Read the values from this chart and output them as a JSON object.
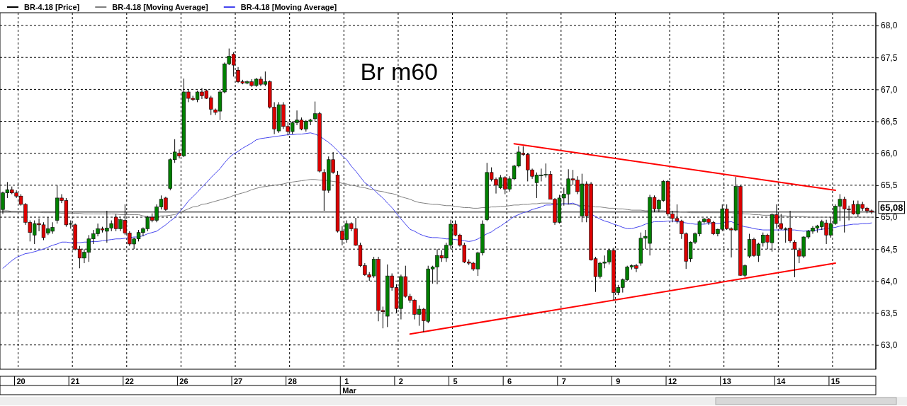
{
  "chart_data": {
    "type": "candlestick",
    "categories": [
      null,
      null,
      null,
      null,
      "20",
      null,
      null,
      null,
      null,
      null,
      null,
      null,
      null,
      null,
      null,
      null,
      "21",
      null,
      null,
      null,
      null,
      null,
      null,
      null,
      null,
      null,
      null,
      null,
      "22",
      null,
      null,
      null,
      null,
      null,
      null,
      null,
      null,
      null,
      null,
      null,
      "26",
      null,
      null,
      null,
      null,
      null,
      null,
      null,
      null,
      null,
      null,
      null,
      "27",
      null,
      null,
      null,
      null,
      null,
      null,
      null,
      null,
      null,
      null,
      null,
      "28",
      null,
      null,
      null,
      null,
      null,
      null,
      null,
      null,
      null,
      null,
      null,
      "1",
      null,
      null,
      null,
      null,
      null,
      null,
      null,
      null,
      null,
      null,
      null,
      "2",
      null,
      null,
      null,
      null,
      null,
      null,
      null,
      null,
      null,
      null,
      null,
      "5",
      null,
      null,
      null,
      null,
      null,
      null,
      null,
      null,
      null,
      null,
      null,
      "6",
      null,
      null,
      null,
      null,
      null,
      null,
      null,
      null,
      null,
      null,
      null,
      "7",
      null,
      null,
      null,
      null,
      null,
      null,
      null,
      null,
      null,
      null,
      null,
      "9",
      null,
      null,
      null,
      null,
      null,
      null,
      null,
      null,
      null,
      null,
      null,
      "12",
      null,
      null,
      null,
      null,
      null,
      null,
      null,
      null,
      null,
      null,
      null,
      "13",
      null,
      null,
      null,
      null,
      null,
      null,
      null,
      null,
      null,
      null,
      null,
      "14",
      null,
      null,
      null,
      null,
      null,
      null,
      null,
      null,
      null,
      null,
      null,
      "15",
      null,
      null,
      null,
      null,
      null,
      null,
      null,
      null
    ],
    "series": [
      {
        "name": "BR-4.18 [Price]",
        "color": "#000000",
        "ohlc": [
          [
            65.12,
            65.4,
            65.05,
            65.38
          ],
          [
            65.38,
            65.55,
            65.3,
            65.43
          ],
          [
            65.43,
            65.48,
            65.36,
            65.38
          ],
          [
            65.38,
            65.42,
            65.3,
            65.33
          ],
          [
            65.33,
            65.36,
            65.18,
            65.2
          ],
          [
            65.2,
            65.22,
            64.88,
            64.92
          ],
          [
            64.92,
            64.95,
            64.62,
            64.76
          ],
          [
            64.72,
            64.95,
            64.58,
            64.9
          ],
          [
            64.9,
            64.98,
            64.78,
            64.88
          ],
          [
            64.88,
            64.92,
            64.64,
            64.68
          ],
          [
            64.75,
            65.0,
            64.72,
            64.82
          ],
          [
            64.78,
            64.92,
            64.74,
            64.84
          ],
          [
            64.95,
            65.5,
            64.9,
            65.3
          ],
          [
            65.3,
            65.36,
            65.22,
            65.26
          ],
          [
            65.26,
            65.3,
            64.85,
            64.88
          ],
          [
            64.9,
            64.95,
            64.82,
            64.9
          ],
          [
            64.88,
            64.9,
            64.48,
            64.5
          ],
          [
            64.5,
            64.55,
            64.2,
            64.36
          ],
          [
            64.36,
            64.5,
            64.28,
            64.45
          ],
          [
            64.45,
            64.72,
            64.3,
            64.66
          ],
          [
            64.66,
            64.8,
            64.58,
            64.74
          ],
          [
            64.74,
            64.9,
            64.7,
            64.82
          ],
          [
            64.82,
            64.85,
            64.76,
            64.8
          ],
          [
            64.78,
            65.1,
            64.6,
            64.83
          ],
          [
            64.83,
            64.95,
            64.78,
            64.9
          ],
          [
            65.0,
            65.05,
            64.78,
            64.82
          ],
          [
            64.82,
            64.98,
            64.78,
            64.96
          ],
          [
            64.95,
            65.2,
            64.72,
            64.75
          ],
          [
            64.75,
            64.78,
            64.55,
            64.58
          ],
          [
            64.58,
            64.68,
            64.5,
            64.66
          ],
          [
            64.66,
            64.8,
            64.62,
            64.76
          ],
          [
            64.76,
            64.84,
            64.7,
            64.82
          ],
          [
            64.82,
            65.02,
            64.78,
            65.0
          ],
          [
            65.0,
            65.06,
            64.92,
            64.95
          ],
          [
            64.95,
            65.2,
            64.92,
            65.16
          ],
          [
            65.16,
            65.34,
            65.12,
            65.28
          ],
          [
            65.3,
            65.32,
            65.1,
            65.12
          ],
          [
            65.45,
            65.92,
            65.42,
            65.9
          ],
          [
            65.9,
            66.22,
            65.85,
            66.02
          ],
          [
            66.0,
            66.06,
            65.92,
            65.96
          ],
          [
            65.96,
            67.17,
            65.94,
            66.96
          ],
          [
            66.96,
            67.0,
            66.8,
            66.86
          ],
          [
            66.86,
            66.9,
            66.82,
            66.84
          ],
          [
            66.84,
            66.98,
            66.8,
            66.96
          ],
          [
            66.96,
            67.02,
            66.85,
            66.9
          ],
          [
            66.98,
            67.0,
            66.85,
            66.86
          ],
          [
            66.87,
            66.9,
            66.6,
            66.69
          ],
          [
            66.68,
            66.7,
            66.6,
            66.64
          ],
          [
            66.66,
            67.0,
            66.52,
            66.96
          ],
          [
            66.96,
            67.42,
            66.94,
            67.4
          ],
          [
            67.4,
            67.64,
            67.38,
            67.52
          ],
          [
            67.55,
            67.58,
            67.2,
            67.38
          ],
          [
            67.3,
            67.35,
            67.1,
            67.12
          ],
          [
            67.12,
            67.15,
            67.08,
            67.1
          ],
          [
            67.1,
            67.14,
            67.08,
            67.12
          ],
          [
            67.12,
            67.16,
            67.04,
            67.06
          ],
          [
            67.06,
            67.18,
            67.04,
            67.16
          ],
          [
            67.16,
            67.2,
            67.05,
            67.08
          ],
          [
            67.08,
            67.28,
            67.05,
            67.12
          ],
          [
            67.12,
            67.14,
            66.7,
            66.72
          ],
          [
            66.72,
            66.8,
            66.3,
            66.38
          ],
          [
            66.35,
            66.8,
            66.32,
            66.76
          ],
          [
            66.76,
            66.8,
            66.38,
            66.42
          ],
          [
            66.42,
            66.5,
            66.28,
            66.34
          ],
          [
            66.34,
            66.5,
            66.3,
            66.48
          ],
          [
            66.48,
            66.67,
            66.44,
            66.52
          ],
          [
            66.52,
            66.56,
            66.36,
            66.38
          ],
          [
            66.38,
            66.52,
            66.34,
            66.5
          ],
          [
            66.5,
            66.54,
            66.44,
            66.52
          ],
          [
            66.54,
            66.81,
            66.5,
            66.62
          ],
          [
            66.62,
            66.65,
            65.7,
            65.72
          ],
          [
            65.7,
            65.75,
            65.1,
            65.42
          ],
          [
            65.42,
            65.95,
            65.38,
            65.9
          ],
          [
            65.9,
            66.02,
            65.68,
            65.7
          ],
          [
            65.66,
            65.72,
            64.76,
            64.78
          ],
          [
            64.78,
            64.86,
            64.56,
            64.65
          ],
          [
            64.65,
            64.95,
            64.6,
            64.9
          ],
          [
            64.9,
            64.92,
            64.78,
            64.82
          ],
          [
            64.82,
            64.99,
            64.55,
            64.56
          ],
          [
            64.56,
            64.6,
            64.22,
            64.24
          ],
          [
            64.24,
            64.28,
            64.08,
            64.1
          ],
          [
            64.1,
            64.14,
            64.0,
            64.06
          ],
          [
            64.08,
            64.38,
            64.05,
            64.34
          ],
          [
            64.34,
            64.38,
            63.37,
            63.54
          ],
          [
            63.54,
            63.6,
            63.26,
            63.52
          ],
          [
            63.45,
            64.26,
            63.28,
            64.08
          ],
          [
            64.08,
            64.12,
            63.85,
            63.9
          ],
          [
            63.9,
            63.95,
            63.5,
            63.57
          ],
          [
            63.57,
            64.1,
            63.4,
            64.07
          ],
          [
            64.07,
            64.24,
            63.74,
            63.76
          ],
          [
            63.76,
            63.8,
            63.66,
            63.7
          ],
          [
            63.7,
            63.72,
            63.4,
            63.48
          ],
          [
            63.48,
            63.62,
            63.3,
            63.56
          ],
          [
            63.56,
            63.58,
            63.2,
            63.38
          ],
          [
            63.37,
            64.24,
            63.34,
            64.19
          ],
          [
            64.19,
            64.24,
            63.96,
            64.22
          ],
          [
            64.22,
            64.5,
            63.95,
            64.4
          ],
          [
            64.4,
            64.48,
            64.3,
            64.36
          ],
          [
            64.36,
            64.6,
            64.3,
            64.56
          ],
          [
            64.56,
            64.96,
            64.5,
            64.89
          ],
          [
            64.89,
            64.95,
            64.7,
            64.72
          ],
          [
            64.72,
            64.74,
            64.54,
            64.56
          ],
          [
            64.56,
            64.6,
            64.28,
            64.3
          ],
          [
            64.3,
            64.34,
            64.25,
            64.28
          ],
          [
            64.28,
            64.3,
            64.16,
            64.19
          ],
          [
            64.19,
            64.46,
            64.08,
            64.44
          ],
          [
            64.44,
            64.95,
            64.4,
            64.89
          ],
          [
            64.96,
            65.85,
            64.94,
            65.7
          ],
          [
            65.7,
            65.78,
            65.56,
            65.59
          ],
          [
            65.59,
            65.62,
            65.37,
            65.5
          ],
          [
            65.46,
            65.66,
            65.44,
            65.62
          ],
          [
            65.62,
            65.64,
            65.36,
            65.44
          ],
          [
            65.44,
            65.64,
            65.4,
            65.6
          ],
          [
            65.6,
            65.82,
            65.58,
            65.8
          ],
          [
            65.8,
            66.11,
            65.78,
            66.02
          ],
          [
            66.0,
            66.11,
            65.96,
            65.98
          ],
          [
            65.98,
            66.0,
            65.56,
            65.74
          ],
          [
            65.74,
            65.76,
            65.6,
            65.64
          ],
          [
            65.54,
            65.7,
            65.3,
            65.66
          ],
          [
            65.66,
            65.76,
            65.56,
            65.66
          ],
          [
            65.66,
            65.84,
            65.62,
            65.67
          ],
          [
            65.67,
            65.72,
            65.28,
            65.28
          ],
          [
            65.28,
            65.3,
            64.88,
            64.92
          ],
          [
            64.92,
            65.35,
            64.9,
            65.3
          ],
          [
            65.3,
            65.46,
            65.18,
            65.36
          ],
          [
            65.36,
            65.75,
            65.2,
            65.6
          ],
          [
            65.6,
            65.74,
            65.5,
            65.58
          ],
          [
            65.58,
            65.64,
            65.36,
            65.4
          ],
          [
            65.02,
            65.68,
            64.92,
            65.52
          ],
          [
            65.52,
            65.56,
            64.92,
            65.02
          ],
          [
            65.52,
            65.55,
            64.32,
            64.33
          ],
          [
            64.35,
            64.38,
            63.83,
            64.07
          ],
          [
            64.07,
            64.3,
            64.04,
            64.28
          ],
          [
            64.28,
            64.4,
            64.2,
            64.3
          ],
          [
            64.3,
            64.5,
            64.26,
            64.48
          ],
          [
            64.48,
            64.52,
            63.7,
            63.82
          ],
          [
            63.82,
            63.94,
            63.78,
            63.9
          ],
          [
            63.9,
            64.04,
            63.82,
            64.02
          ],
          [
            64.02,
            64.24,
            64.0,
            64.22
          ],
          [
            64.22,
            64.26,
            64.18,
            64.24
          ],
          [
            64.24,
            64.27,
            64.14,
            64.2
          ],
          [
            64.28,
            64.76,
            64.24,
            64.67
          ],
          [
            64.67,
            64.8,
            64.5,
            64.7
          ],
          [
            64.59,
            65.35,
            64.4,
            65.31
          ],
          [
            65.31,
            65.34,
            65.08,
            65.13
          ],
          [
            65.13,
            65.28,
            65.08,
            65.26
          ],
          [
            65.26,
            65.58,
            65.24,
            65.56
          ],
          [
            65.56,
            65.58,
            65.02,
            65.05
          ],
          [
            65.05,
            65.1,
            64.92,
            64.98
          ],
          [
            64.98,
            65.2,
            64.9,
            64.94
          ],
          [
            64.94,
            64.96,
            64.66,
            64.74
          ],
          [
            64.74,
            64.76,
            64.19,
            64.31
          ],
          [
            64.35,
            64.62,
            64.3,
            64.61
          ],
          [
            64.61,
            64.76,
            64.58,
            64.74
          ],
          [
            64.74,
            64.95,
            64.7,
            64.93
          ],
          [
            64.93,
            64.99,
            64.9,
            64.97
          ],
          [
            64.97,
            64.99,
            64.88,
            64.92
          ],
          [
            64.92,
            64.94,
            64.72,
            64.74
          ],
          [
            64.74,
            64.82,
            64.7,
            64.81
          ],
          [
            64.81,
            65.2,
            64.78,
            65.13
          ],
          [
            65.13,
            65.2,
            64.8,
            64.82
          ],
          [
            64.82,
            64.84,
            64.37,
            64.8
          ],
          [
            64.8,
            65.63,
            64.78,
            65.48
          ],
          [
            65.48,
            65.5,
            64.08,
            64.09
          ],
          [
            64.09,
            64.26,
            64.06,
            64.24
          ],
          [
            64.39,
            64.74,
            64.36,
            64.65
          ],
          [
            64.65,
            64.68,
            64.38,
            64.4
          ],
          [
            64.4,
            64.6,
            64.3,
            64.58
          ],
          [
            64.6,
            64.76,
            64.54,
            64.72
          ],
          [
            64.72,
            64.74,
            64.5,
            64.61
          ],
          [
            64.6,
            65.06,
            64.46,
            65.04
          ],
          [
            65.04,
            65.2,
            64.82,
            64.9
          ],
          [
            64.9,
            65.05,
            64.8,
            64.82
          ],
          [
            64.82,
            64.84,
            64.6,
            64.82
          ],
          [
            64.83,
            65.1,
            64.6,
            64.63
          ],
          [
            64.61,
            64.64,
            64.06,
            64.5
          ],
          [
            64.48,
            64.52,
            64.28,
            64.39
          ],
          [
            64.39,
            64.7,
            64.36,
            64.69
          ],
          [
            64.69,
            64.8,
            64.66,
            64.78
          ],
          [
            64.78,
            64.86,
            64.74,
            64.83
          ],
          [
            64.83,
            64.88,
            64.76,
            64.86
          ],
          [
            64.85,
            64.96,
            64.8,
            64.93
          ],
          [
            64.91,
            64.96,
            64.58,
            64.72
          ],
          [
            64.72,
            65.0,
            64.68,
            64.9
          ],
          [
            64.9,
            65.2,
            64.88,
            65.17
          ],
          [
            65.17,
            65.36,
            64.94,
            65.28
          ],
          [
            65.28,
            65.32,
            64.76,
            65.13
          ],
          [
            65.13,
            65.18,
            64.95,
            65.12
          ],
          [
            65.2,
            65.26,
            65.04,
            65.05
          ],
          [
            65.05,
            65.26,
            65.0,
            65.2
          ],
          [
            65.2,
            65.24,
            65.1,
            65.14
          ],
          [
            65.14,
            65.16,
            65.06,
            65.1
          ],
          [
            65.1,
            65.12,
            65.05,
            65.08
          ]
        ]
      },
      {
        "name": "BR-4.18 [Moving Average]",
        "type": "line",
        "color": "#808080",
        "values": [
          65.1,
          65.1,
          65.09,
          65.09,
          65.09,
          65.08,
          65.08,
          65.08,
          65.08,
          65.07,
          65.07,
          65.07,
          65.07,
          65.06,
          65.06,
          65.06,
          65.06,
          65.06,
          65.05,
          65.05,
          65.05,
          65.05,
          65.05,
          65.05,
          65.05,
          65.05,
          65.04,
          65.04,
          65.04,
          65.04,
          65.04,
          65.02,
          65.01,
          65.0,
          65.01,
          65.02,
          65.02,
          65.03,
          65.04,
          65.07,
          65.1,
          65.13,
          65.16,
          65.17,
          65.2,
          65.21,
          65.23,
          65.25,
          65.27,
          65.29,
          65.31,
          65.34,
          65.36,
          65.38,
          65.4,
          65.43,
          65.45,
          65.47,
          65.48,
          65.49,
          65.5,
          65.51,
          65.52,
          65.54,
          65.55,
          65.56,
          65.57,
          65.58,
          65.59,
          65.59,
          65.58,
          65.58,
          65.57,
          65.56,
          65.55,
          65.53,
          65.52,
          65.5,
          65.49,
          65.47,
          65.46,
          65.44,
          65.43,
          65.41,
          65.4,
          65.38,
          65.37,
          65.35,
          65.32,
          65.3,
          65.28,
          65.25,
          65.23,
          65.22,
          65.21,
          65.2,
          65.2,
          65.19,
          65.18,
          65.18,
          65.17,
          65.16,
          65.15,
          65.15,
          65.14,
          65.14,
          65.15,
          65.15,
          65.16,
          65.16,
          65.17,
          65.17,
          65.18,
          65.19,
          65.19,
          65.2,
          65.2,
          65.21,
          65.21,
          65.22,
          65.22,
          65.22,
          65.21,
          65.21,
          65.21,
          65.2,
          65.2,
          65.19,
          65.18,
          65.18,
          65.17,
          65.16,
          65.16,
          65.15,
          65.14,
          65.14,
          65.13,
          65.13,
          65.12,
          65.11,
          65.11,
          65.11,
          65.1,
          65.1,
          65.1,
          65.1,
          65.1,
          65.09,
          65.09,
          65.09,
          65.08,
          65.08,
          65.07,
          65.07,
          65.07,
          65.07,
          65.07,
          65.07,
          65.07,
          65.07,
          65.07,
          65.07,
          65.06,
          65.06,
          65.05,
          65.05,
          65.04,
          65.04,
          65.03,
          65.03,
          65.03,
          65.02,
          65.02,
          65.02,
          65.01,
          65.01,
          65.01,
          65.01,
          65.0,
          65.0,
          65.0,
          65.0,
          65.0,
          65.0,
          65.0,
          65.0,
          65.0,
          65.0,
          65.0,
          65.0,
          65.0,
          65.0,
          65.0
        ]
      },
      {
        "name": "BR-4.18 [Moving Average]",
        "type": "line",
        "color": "#4444ee",
        "values": [
          64.2,
          64.26,
          64.32,
          64.37,
          64.4,
          64.43,
          64.44,
          64.46,
          64.48,
          64.5,
          64.53,
          64.56,
          64.58,
          64.61,
          64.61,
          64.6,
          64.6,
          64.6,
          64.61,
          64.61,
          64.62,
          64.62,
          64.63,
          64.64,
          64.65,
          64.66,
          64.66,
          64.67,
          64.68,
          64.69,
          64.69,
          64.71,
          64.74,
          64.76,
          64.78,
          64.83,
          64.88,
          64.94,
          64.99,
          65.08,
          65.16,
          65.25,
          65.32,
          65.39,
          65.47,
          65.54,
          65.62,
          65.69,
          65.76,
          65.85,
          65.93,
          65.99,
          66.03,
          66.08,
          66.12,
          66.16,
          66.21,
          66.23,
          66.24,
          66.25,
          66.26,
          66.27,
          66.28,
          66.29,
          66.29,
          66.3,
          66.3,
          66.31,
          66.32,
          66.3,
          66.27,
          66.22,
          66.17,
          66.11,
          66.04,
          65.96,
          65.9,
          65.8,
          65.72,
          65.63,
          65.54,
          65.49,
          65.43,
          65.36,
          65.3,
          65.22,
          65.15,
          65.06,
          64.97,
          64.89,
          64.81,
          64.78,
          64.74,
          64.71,
          64.69,
          64.68,
          64.68,
          64.67,
          64.66,
          64.66,
          64.65,
          64.64,
          64.63,
          64.62,
          64.63,
          64.66,
          64.7,
          64.74,
          64.77,
          64.82,
          64.86,
          64.91,
          64.96,
          65.01,
          65.04,
          65.07,
          65.09,
          65.12,
          65.14,
          65.16,
          65.19,
          65.19,
          65.2,
          65.2,
          65.21,
          65.21,
          65.22,
          65.19,
          65.14,
          65.1,
          65.05,
          65.01,
          64.97,
          64.94,
          64.92,
          64.89,
          64.87,
          64.84,
          64.82,
          64.82,
          64.84,
          64.86,
          64.89,
          64.91,
          64.93,
          64.93,
          64.93,
          64.94,
          64.94,
          64.93,
          64.92,
          64.91,
          64.9,
          64.89,
          64.89,
          64.89,
          64.9,
          64.9,
          64.9,
          64.91,
          64.92,
          64.93,
          64.9,
          64.87,
          64.85,
          64.84,
          64.82,
          64.81,
          64.8,
          64.8,
          64.8,
          64.8,
          64.8,
          64.8,
          64.8,
          64.8,
          64.79,
          64.78,
          64.79,
          64.79,
          64.8,
          64.81,
          64.82,
          64.83,
          64.84,
          64.86,
          64.87,
          64.88,
          64.89,
          64.89,
          64.9,
          64.9,
          64.91
        ]
      },
      {
        "type": "line",
        "color": "#ff0000",
        "values": [
          null,
          null,
          null,
          null,
          null,
          null,
          null,
          null,
          null,
          null,
          null,
          null,
          null,
          null,
          null,
          null,
          null,
          null,
          null,
          null,
          null,
          null,
          null,
          null,
          null,
          null,
          null,
          null,
          null,
          null,
          null,
          null,
          null,
          null,
          null,
          null,
          null,
          null,
          null,
          null,
          null,
          null,
          null,
          null,
          null,
          null,
          null,
          null,
          null,
          null,
          null,
          null,
          null,
          null,
          null,
          null,
          null,
          null,
          null,
          null,
          null,
          null,
          null,
          null,
          null,
          null,
          null,
          null,
          null,
          null,
          null,
          null,
          null,
          null,
          null,
          null,
          null,
          null,
          null,
          null,
          null,
          null,
          null,
          null,
          null,
          null,
          null,
          null,
          null,
          null,
          null,
          null,
          null,
          null,
          null,
          null,
          null,
          null,
          null,
          null,
          null,
          null,
          null,
          null,
          null,
          null,
          null,
          null,
          null,
          null,
          null,
          null,
          null,
          66.15,
          null,
          null,
          null,
          null,
          null,
          null,
          null,
          null,
          null,
          null,
          null,
          null,
          null,
          null,
          null,
          null,
          null,
          null,
          null,
          null,
          null,
          null,
          null,
          null,
          null,
          null,
          null,
          null,
          null,
          null,
          null,
          null,
          null,
          null,
          null,
          null,
          null,
          null,
          null,
          null,
          null,
          null,
          null,
          null,
          null,
          null,
          null,
          null,
          null,
          null,
          null,
          null,
          null,
          null,
          null,
          null,
          null,
          null,
          null,
          null,
          null,
          null,
          null,
          null,
          null,
          null,
          null,
          null,
          null,
          null,
          65.42,
          null,
          null,
          null,
          null,
          null,
          null,
          null,
          null
        ]
      },
      {
        "type": "line",
        "color": "#ff0000",
        "values": [
          null,
          null,
          null,
          null,
          null,
          null,
          null,
          null,
          null,
          null,
          null,
          null,
          null,
          null,
          null,
          null,
          null,
          null,
          null,
          null,
          null,
          null,
          null,
          null,
          null,
          null,
          null,
          null,
          null,
          null,
          null,
          null,
          null,
          null,
          null,
          null,
          null,
          null,
          null,
          null,
          null,
          null,
          null,
          null,
          null,
          null,
          null,
          null,
          null,
          null,
          null,
          null,
          null,
          null,
          null,
          null,
          null,
          null,
          null,
          null,
          null,
          null,
          null,
          null,
          null,
          null,
          null,
          null,
          null,
          null,
          null,
          null,
          null,
          null,
          null,
          null,
          null,
          null,
          null,
          null,
          null,
          null,
          null,
          null,
          null,
          null,
          null,
          null,
          null,
          null,
          63.17,
          null,
          null,
          null,
          null,
          null,
          null,
          null,
          null,
          null,
          null,
          null,
          null,
          null,
          null,
          null,
          null,
          null,
          null,
          null,
          null,
          null,
          null,
          null,
          null,
          null,
          null,
          null,
          null,
          null,
          null,
          null,
          null,
          null,
          null,
          null,
          null,
          null,
          null,
          null,
          null,
          null,
          null,
          null,
          null,
          null,
          null,
          null,
          null,
          null,
          null,
          null,
          null,
          null,
          null,
          null,
          null,
          null,
          null,
          null,
          null,
          null,
          null,
          null,
          null,
          null,
          null,
          null,
          null,
          null,
          null,
          null,
          null,
          null,
          null,
          null,
          null,
          null,
          null,
          null,
          null,
          null,
          null,
          null,
          null,
          null,
          null,
          null,
          null,
          null,
          null,
          null,
          null,
          null,
          64.28,
          null,
          null,
          null,
          null,
          null,
          null,
          null,
          null
        ]
      }
    ],
    "ylim": [
      62.62,
      68.2
    ],
    "yticks": [
      {
        "value": 63,
        "label": "63,0"
      },
      {
        "value": 63.5,
        "label": "63,5"
      },
      {
        "value": 64,
        "label": "64,0"
      },
      {
        "value": 64.5,
        "label": "64,5"
      },
      {
        "value": 65,
        "label": "65,0"
      },
      {
        "value": 65.5,
        "label": "65,5"
      },
      {
        "value": 66,
        "label": "66,0"
      },
      {
        "value": 66.5,
        "label": "66,5"
      },
      {
        "value": 67,
        "label": "67,0"
      },
      {
        "value": 67.5,
        "label": "67,5"
      },
      {
        "value": 68,
        "label": "68,0"
      }
    ],
    "ref_lines": [
      {
        "axis": "y",
        "value": 65.08,
        "label": "65,08",
        "color": "#000000"
      }
    ],
    "annotations": [
      "Br m60",
      "Mar"
    ],
    "grid": true,
    "legend": "top left"
  }
}
